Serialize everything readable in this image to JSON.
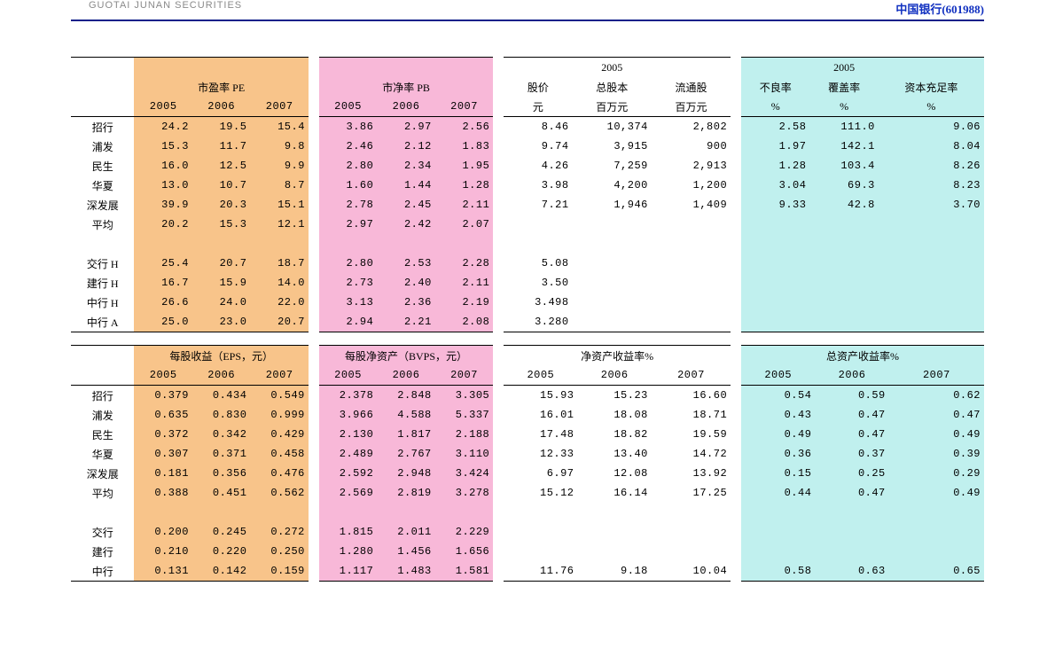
{
  "header": {
    "left_text": "GUOTAI JUNAN SECURITIES",
    "right_company": "中国银行",
    "right_code": "(601988)"
  },
  "colors": {
    "pe_bg": "#f8c48a",
    "pb_bg": "#f8b8d8",
    "cyan_bg": "#c0f0ee",
    "header_blue": "#1030c0",
    "rule_blue": "#10208a"
  },
  "table1": {
    "groups": {
      "pe": {
        "title": "市盈率 PE",
        "years": [
          "2005",
          "2006",
          "2007"
        ]
      },
      "pb": {
        "title": "市净率 PB",
        "years": [
          "2005",
          "2006",
          "2007"
        ]
      },
      "price": {
        "title": "股价",
        "unit": "元"
      },
      "total_shares": {
        "title": "总股本",
        "year": "2005",
        "unit": "百万元"
      },
      "float_shares": {
        "title": "流通股",
        "unit": "百万元"
      },
      "npl": {
        "title": "不良率",
        "year": "2005",
        "unit": "%"
      },
      "coverage": {
        "title": "覆盖率",
        "unit": "%"
      },
      "car": {
        "title": "资本充足率",
        "unit": "%"
      }
    },
    "rows": [
      {
        "name": "招行",
        "pe": [
          "24.2",
          "19.5",
          "15.4"
        ],
        "pb": [
          "3.86",
          "2.97",
          "2.56"
        ],
        "price": "8.46",
        "tot": "10,374",
        "flt": "2,802",
        "npl": "2.58",
        "cov": "111.0",
        "car": "9.06"
      },
      {
        "name": "浦发",
        "pe": [
          "15.3",
          "11.7",
          "9.8"
        ],
        "pb": [
          "2.46",
          "2.12",
          "1.83"
        ],
        "price": "9.74",
        "tot": "3,915",
        "flt": "900",
        "npl": "1.97",
        "cov": "142.1",
        "car": "8.04"
      },
      {
        "name": "民生",
        "pe": [
          "16.0",
          "12.5",
          "9.9"
        ],
        "pb": [
          "2.80",
          "2.34",
          "1.95"
        ],
        "price": "4.26",
        "tot": "7,259",
        "flt": "2,913",
        "npl": "1.28",
        "cov": "103.4",
        "car": "8.26"
      },
      {
        "name": "华夏",
        "pe": [
          "13.0",
          "10.7",
          "8.7"
        ],
        "pb": [
          "1.60",
          "1.44",
          "1.28"
        ],
        "price": "3.98",
        "tot": "4,200",
        "flt": "1,200",
        "npl": "3.04",
        "cov": "69.3",
        "car": "8.23"
      },
      {
        "name": "深发展",
        "pe": [
          "39.9",
          "20.3",
          "15.1"
        ],
        "pb": [
          "2.78",
          "2.45",
          "2.11"
        ],
        "price": "7.21",
        "tot": "1,946",
        "flt": "1,409",
        "npl": "9.33",
        "cov": "42.8",
        "car": "3.70"
      },
      {
        "name": "平均",
        "pe": [
          "20.2",
          "15.3",
          "12.1"
        ],
        "pb": [
          "2.97",
          "2.42",
          "2.07"
        ],
        "price": "",
        "tot": "",
        "flt": "",
        "npl": "",
        "cov": "",
        "car": ""
      },
      {
        "name": "",
        "pe": [
          "",
          "",
          ""
        ],
        "pb": [
          "",
          "",
          ""
        ],
        "price": "",
        "tot": "",
        "flt": "",
        "npl": "",
        "cov": "",
        "car": ""
      },
      {
        "name": "交行 H",
        "pe": [
          "25.4",
          "20.7",
          "18.7"
        ],
        "pb": [
          "2.80",
          "2.53",
          "2.28"
        ],
        "price": "5.08",
        "tot": "",
        "flt": "",
        "npl": "",
        "cov": "",
        "car": ""
      },
      {
        "name": "建行 H",
        "pe": [
          "16.7",
          "15.9",
          "14.0"
        ],
        "pb": [
          "2.73",
          "2.40",
          "2.11"
        ],
        "price": "3.50",
        "tot": "",
        "flt": "",
        "npl": "",
        "cov": "",
        "car": ""
      },
      {
        "name": "中行 H",
        "pe": [
          "26.6",
          "24.0",
          "22.0"
        ],
        "pb": [
          "3.13",
          "2.36",
          "2.19"
        ],
        "price": "3.498",
        "tot": "",
        "flt": "",
        "npl": "",
        "cov": "",
        "car": ""
      },
      {
        "name": "中行 A",
        "pe": [
          "25.0",
          "23.0",
          "20.7"
        ],
        "pb": [
          "2.94",
          "2.21",
          "2.08"
        ],
        "price": "3.280",
        "tot": "",
        "flt": "",
        "npl": "",
        "cov": "",
        "car": ""
      }
    ]
  },
  "table2": {
    "groups": {
      "eps": {
        "title": "每股收益（EPS，元）",
        "years": [
          "2005",
          "2006",
          "2007"
        ]
      },
      "bvps": {
        "title": "每股净资产（BVPS，元）",
        "years": [
          "2005",
          "2006",
          "2007"
        ]
      },
      "roe": {
        "title": "净资产收益率%",
        "years": [
          "2005",
          "2006",
          "2007"
        ]
      },
      "roa": {
        "title": "总资产收益率%",
        "years": [
          "2005",
          "2006",
          "2007"
        ]
      }
    },
    "rows": [
      {
        "name": "招行",
        "eps": [
          "0.379",
          "0.434",
          "0.549"
        ],
        "bvps": [
          "2.378",
          "2.848",
          "3.305"
        ],
        "roe": [
          "15.93",
          "15.23",
          "16.60"
        ],
        "roa": [
          "0.54",
          "0.59",
          "0.62"
        ]
      },
      {
        "name": "浦发",
        "eps": [
          "0.635",
          "0.830",
          "0.999"
        ],
        "bvps": [
          "3.966",
          "4.588",
          "5.337"
        ],
        "roe": [
          "16.01",
          "18.08",
          "18.71"
        ],
        "roa": [
          "0.43",
          "0.47",
          "0.47"
        ]
      },
      {
        "name": "民生",
        "eps": [
          "0.372",
          "0.342",
          "0.429"
        ],
        "bvps": [
          "2.130",
          "1.817",
          "2.188"
        ],
        "roe": [
          "17.48",
          "18.82",
          "19.59"
        ],
        "roa": [
          "0.49",
          "0.47",
          "0.49"
        ]
      },
      {
        "name": "华夏",
        "eps": [
          "0.307",
          "0.371",
          "0.458"
        ],
        "bvps": [
          "2.489",
          "2.767",
          "3.110"
        ],
        "roe": [
          "12.33",
          "13.40",
          "14.72"
        ],
        "roa": [
          "0.36",
          "0.37",
          "0.39"
        ]
      },
      {
        "name": "深发展",
        "eps": [
          "0.181",
          "0.356",
          "0.476"
        ],
        "bvps": [
          "2.592",
          "2.948",
          "3.424"
        ],
        "roe": [
          "6.97",
          "12.08",
          "13.92"
        ],
        "roa": [
          "0.15",
          "0.25",
          "0.29"
        ]
      },
      {
        "name": "平均",
        "eps": [
          "0.388",
          "0.451",
          "0.562"
        ],
        "bvps": [
          "2.569",
          "2.819",
          "3.278"
        ],
        "roe": [
          "15.12",
          "16.14",
          "17.25"
        ],
        "roa": [
          "0.44",
          "0.47",
          "0.49"
        ]
      },
      {
        "name": "",
        "eps": [
          "",
          "",
          ""
        ],
        "bvps": [
          "",
          "",
          ""
        ],
        "roe": [
          "",
          "",
          ""
        ],
        "roa": [
          "",
          "",
          ""
        ]
      },
      {
        "name": "交行",
        "eps": [
          "0.200",
          "0.245",
          "0.272"
        ],
        "bvps": [
          "1.815",
          "2.011",
          "2.229"
        ],
        "roe": [
          "",
          "",
          ""
        ],
        "roa": [
          "",
          "",
          ""
        ]
      },
      {
        "name": "建行",
        "eps": [
          "0.210",
          "0.220",
          "0.250"
        ],
        "bvps": [
          "1.280",
          "1.456",
          "1.656"
        ],
        "roe": [
          "",
          "",
          ""
        ],
        "roa": [
          "",
          "",
          ""
        ]
      },
      {
        "name": "中行",
        "eps": [
          "0.131",
          "0.142",
          "0.159"
        ],
        "bvps": [
          "1.117",
          "1.483",
          "1.581"
        ],
        "roe": [
          "11.76",
          "9.18",
          "10.04"
        ],
        "roa": [
          "0.58",
          "0.63",
          "0.65"
        ]
      }
    ]
  }
}
